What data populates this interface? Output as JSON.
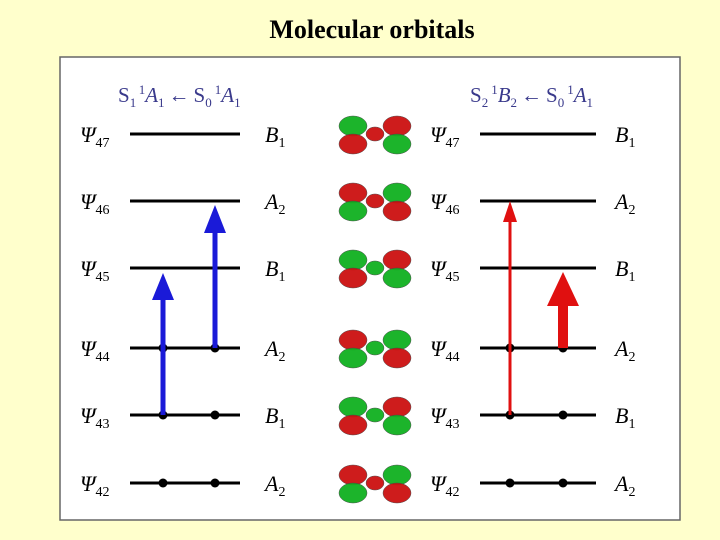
{
  "title": "Molecular orbitals",
  "left_header": [
    "S",
    "1",
    "1",
    "A",
    "1",
    "←",
    "S",
    "0",
    "1",
    "A",
    "1"
  ],
  "right_header": [
    "S",
    "2",
    "1",
    "B",
    "2",
    "←",
    "S",
    "0",
    "1",
    "A",
    "1"
  ],
  "levels": [
    {
      "psi": "Ψ",
      "n": "47",
      "sym": "B",
      "sub": "1"
    },
    {
      "psi": "Ψ",
      "n": "46",
      "sym": "A",
      "sub": "2"
    },
    {
      "psi": "Ψ",
      "n": "45",
      "sym": "B",
      "sub": "1"
    },
    {
      "psi": "Ψ",
      "n": "44",
      "sym": "A",
      "sub": "2"
    },
    {
      "psi": "Ψ",
      "n": "43",
      "sym": "B",
      "sub": "1"
    },
    {
      "psi": "Ψ",
      "n": "42",
      "sym": "A",
      "sub": "2"
    }
  ]
}
